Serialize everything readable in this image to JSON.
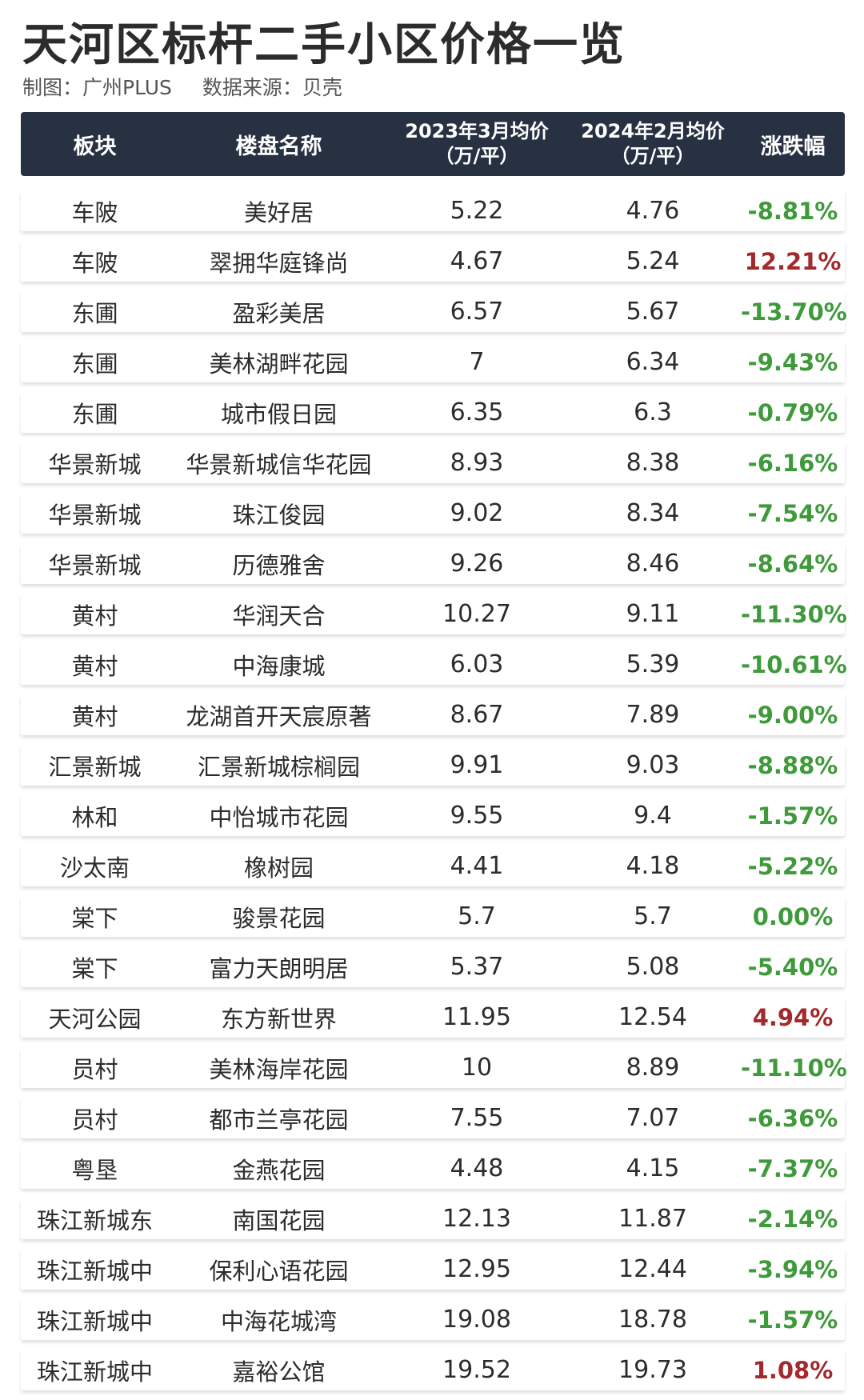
{
  "title": "天河区标杆二手小区价格一览",
  "credit": "制图：广州PLUS",
  "source": "数据来源：贝壳",
  "header": {
    "col1": "板块",
    "col2": "楼盘名称",
    "col3_line1": "2023年3月均价",
    "col3_line2": "（万/平）",
    "col4_line1": "2024年2月均价",
    "col4_line2": "（万/平）",
    "col5": "涨跌幅"
  },
  "colors": {
    "header_bg": "#283142",
    "decline": "#3f9a3b",
    "increase": "#a4292d"
  },
  "rows": [
    {
      "district": "车陂",
      "name": "美好居",
      "price_2023_03": "5.22",
      "price_2024_02": "4.76",
      "change": "-8.81%",
      "trend": "neg"
    },
    {
      "district": "车陂",
      "name": "翠拥华庭锋尚",
      "price_2023_03": "4.67",
      "price_2024_02": "5.24",
      "change": "12.21%",
      "trend": "pos"
    },
    {
      "district": "东圃",
      "name": "盈彩美居",
      "price_2023_03": "6.57",
      "price_2024_02": "5.67",
      "change": "-13.70%",
      "trend": "neg"
    },
    {
      "district": "东圃",
      "name": "美林湖畔花园",
      "price_2023_03": "7",
      "price_2024_02": "6.34",
      "change": "-9.43%",
      "trend": "neg"
    },
    {
      "district": "东圃",
      "name": "城市假日园",
      "price_2023_03": "6.35",
      "price_2024_02": "6.3",
      "change": "-0.79%",
      "trend": "neg"
    },
    {
      "district": "华景新城",
      "name": "华景新城信华花园",
      "price_2023_03": "8.93",
      "price_2024_02": "8.38",
      "change": "-6.16%",
      "trend": "neg"
    },
    {
      "district": "华景新城",
      "name": "珠江俊园",
      "price_2023_03": "9.02",
      "price_2024_02": "8.34",
      "change": "-7.54%",
      "trend": "neg"
    },
    {
      "district": "华景新城",
      "name": "历德雅舍",
      "price_2023_03": "9.26",
      "price_2024_02": "8.46",
      "change": "-8.64%",
      "trend": "neg"
    },
    {
      "district": "黄村",
      "name": "华润天合",
      "price_2023_03": "10.27",
      "price_2024_02": "9.11",
      "change": "-11.30%",
      "trend": "neg"
    },
    {
      "district": "黄村",
      "name": "中海康城",
      "price_2023_03": "6.03",
      "price_2024_02": "5.39",
      "change": "-10.61%",
      "trend": "neg"
    },
    {
      "district": "黄村",
      "name": "龙湖首开天宸原著",
      "price_2023_03": "8.67",
      "price_2024_02": "7.89",
      "change": "-9.00%",
      "trend": "neg"
    },
    {
      "district": "汇景新城",
      "name": "汇景新城棕榈园",
      "price_2023_03": "9.91",
      "price_2024_02": "9.03",
      "change": "-8.88%",
      "trend": "neg"
    },
    {
      "district": "林和",
      "name": "中怡城市花园",
      "price_2023_03": "9.55",
      "price_2024_02": "9.4",
      "change": "-1.57%",
      "trend": "neg"
    },
    {
      "district": "沙太南",
      "name": "橡树园",
      "price_2023_03": "4.41",
      "price_2024_02": "4.18",
      "change": "-5.22%",
      "trend": "neg"
    },
    {
      "district": "棠下",
      "name": "骏景花园",
      "price_2023_03": "5.7",
      "price_2024_02": "5.7",
      "change": "0.00%",
      "trend": "neg"
    },
    {
      "district": "棠下",
      "name": "富力天朗明居",
      "price_2023_03": "5.37",
      "price_2024_02": "5.08",
      "change": "-5.40%",
      "trend": "neg"
    },
    {
      "district": "天河公园",
      "name": "东方新世界",
      "price_2023_03": "11.95",
      "price_2024_02": "12.54",
      "change": "4.94%",
      "trend": "pos"
    },
    {
      "district": "员村",
      "name": "美林海岸花园",
      "price_2023_03": "10",
      "price_2024_02": "8.89",
      "change": "-11.10%",
      "trend": "neg"
    },
    {
      "district": "员村",
      "name": "都市兰亭花园",
      "price_2023_03": "7.55",
      "price_2024_02": "7.07",
      "change": "-6.36%",
      "trend": "neg"
    },
    {
      "district": "粤垦",
      "name": "金燕花园",
      "price_2023_03": "4.48",
      "price_2024_02": "4.15",
      "change": "-7.37%",
      "trend": "neg"
    },
    {
      "district": "珠江新城东",
      "name": "南国花园",
      "price_2023_03": "12.13",
      "price_2024_02": "11.87",
      "change": "-2.14%",
      "trend": "neg"
    },
    {
      "district": "珠江新城中",
      "name": "保利心语花园",
      "price_2023_03": "12.95",
      "price_2024_02": "12.44",
      "change": "-3.94%",
      "trend": "neg"
    },
    {
      "district": "珠江新城中",
      "name": "中海花城湾",
      "price_2023_03": "19.08",
      "price_2024_02": "18.78",
      "change": "-1.57%",
      "trend": "neg"
    },
    {
      "district": "珠江新城中",
      "name": "嘉裕公馆",
      "price_2023_03": "19.52",
      "price_2024_02": "19.73",
      "change": "1.08%",
      "trend": "pos"
    }
  ]
}
